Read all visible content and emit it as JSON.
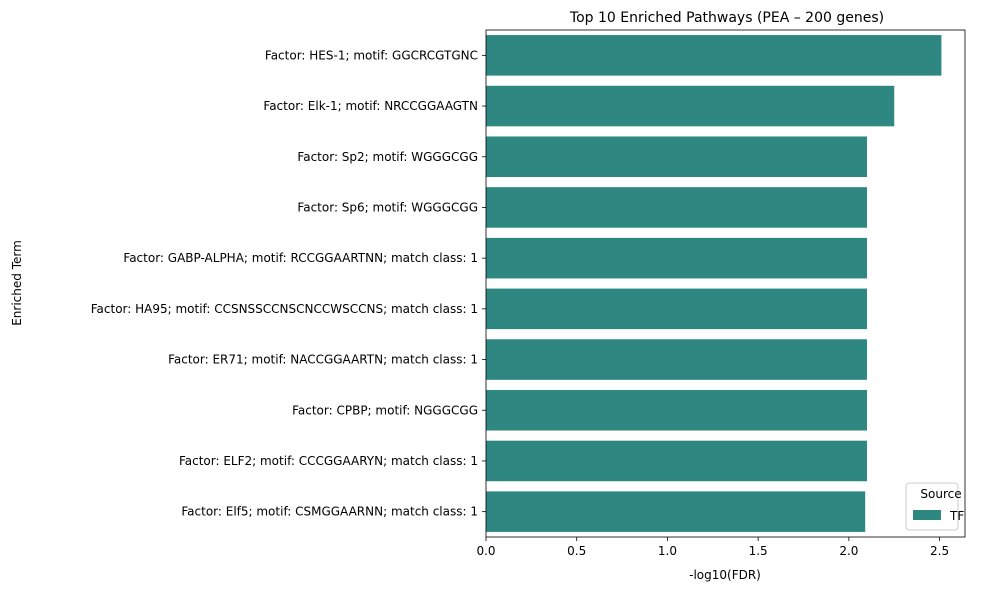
{
  "chart_data": {
    "type": "bar",
    "orientation": "horizontal",
    "title": "Top 10 Enriched Pathways (PEA – 200 genes)",
    "xlabel": "-log10(FDR)",
    "ylabel": "Enriched Term",
    "xlim": [
      0,
      2.64
    ],
    "xticks": [
      0.0,
      0.5,
      1.0,
      1.5,
      2.0,
      2.5
    ],
    "xtick_labels": [
      "0.0",
      "0.5",
      "1.0",
      "1.5",
      "2.0",
      "2.5"
    ],
    "grid": false,
    "categories": [
      "Factor: HES-1; motif: GGCRCGTGNC",
      "Factor: Elk-1; motif: NRCCGGAAGTN",
      "Factor: Sp2; motif: WGGGCGG",
      "Factor: Sp6; motif: WGGGCGG",
      "Factor: GABP-ALPHA; motif: RCCGGAARTNN; match class: 1",
      "Factor: HA95; motif: CCSNSSCCNSCNCCWSCCNS; match class: 1",
      "Factor: ER71; motif: NACCGGAARTN; match class: 1",
      "Factor: CPBP; motif: NGGGCGG",
      "Factor: ELF2; motif: CCCGGAARYN; match class: 1",
      "Factor: Elf5; motif: CSMGGAARNN; match class: 1"
    ],
    "series": [
      {
        "name": "TF",
        "color": "#2e8780",
        "values": [
          2.51,
          2.25,
          2.1,
          2.1,
          2.1,
          2.1,
          2.1,
          2.1,
          2.1,
          2.09
        ]
      }
    ],
    "legend": {
      "title": "Source",
      "placement": "lower-right",
      "entries": [
        "TF"
      ]
    }
  }
}
